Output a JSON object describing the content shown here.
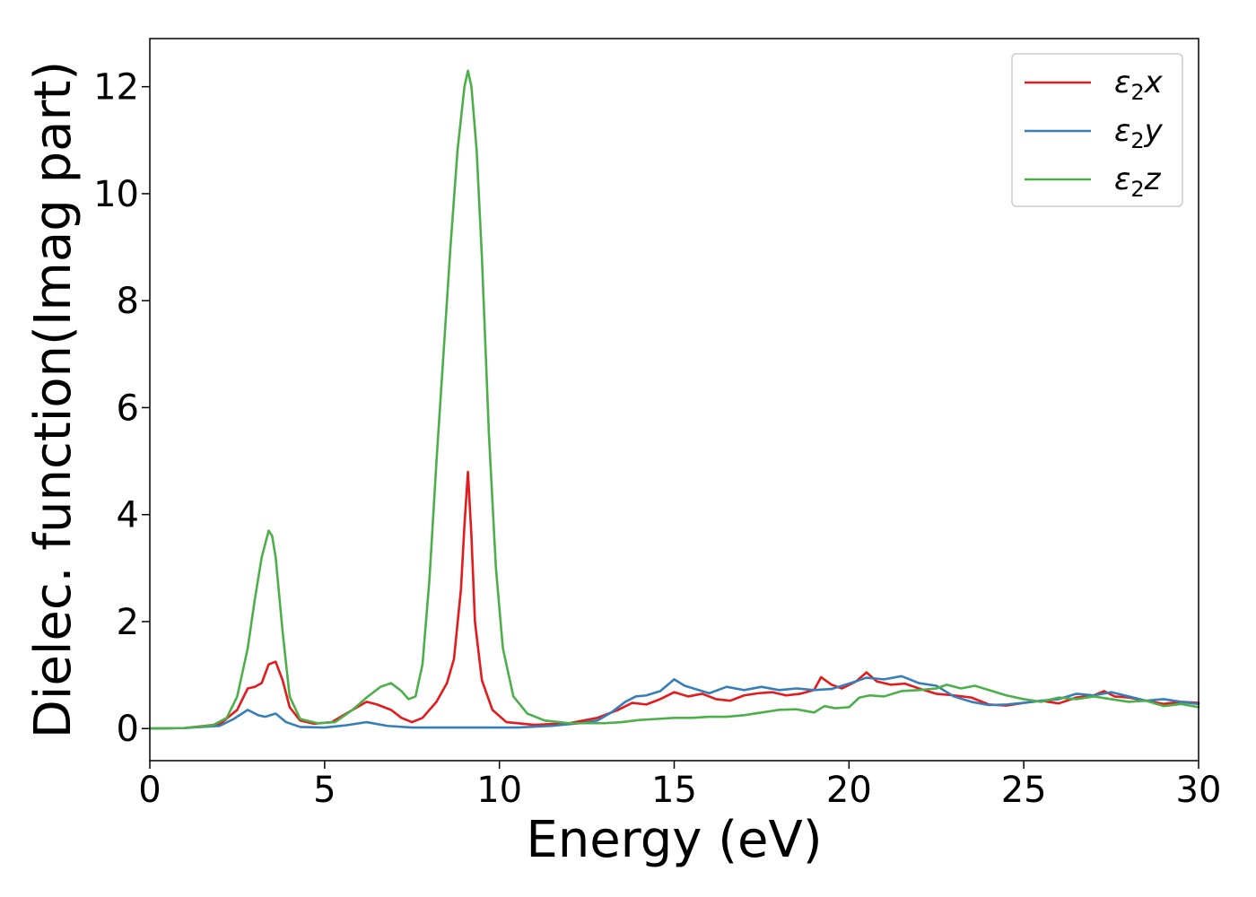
{
  "chart_data": {
    "type": "line",
    "xlabel": "Energy (eV)",
    "ylabel": "Dielec. function(Imag part)",
    "xlim": [
      0,
      30
    ],
    "ylim": [
      -0.6,
      12.9
    ],
    "xticks": [
      0,
      5,
      10,
      15,
      20,
      25,
      30
    ],
    "yticks": [
      0,
      2,
      4,
      6,
      8,
      10,
      12
    ],
    "grid": false,
    "legend_position": "top-right",
    "series": [
      {
        "name": "ε₂x",
        "legend_base": "ε",
        "legend_sub": "2",
        "legend_suffix": "x",
        "color": "#e41a1c",
        "x": [
          0,
          1,
          2,
          2.5,
          2.8,
          3.0,
          3.2,
          3.4,
          3.6,
          3.8,
          4.0,
          4.3,
          4.7,
          5.2,
          5.8,
          6.2,
          6.5,
          6.9,
          7.2,
          7.5,
          7.8,
          8.2,
          8.5,
          8.7,
          8.9,
          9.0,
          9.1,
          9.2,
          9.3,
          9.5,
          9.8,
          10.2,
          11,
          12,
          12.8,
          13.4,
          13.8,
          14.2,
          14.6,
          15.0,
          15.4,
          15.8,
          16.2,
          16.6,
          17.0,
          17.4,
          17.8,
          18.2,
          18.6,
          19.0,
          19.2,
          19.5,
          19.8,
          20.2,
          20.5,
          20.8,
          21.2,
          21.6,
          22.0,
          22.5,
          23.0,
          23.5,
          24.0,
          24.5,
          25.0,
          25.5,
          26.0,
          26.5,
          27.0,
          27.3,
          27.6,
          28.0,
          28.5,
          29.0,
          29.5,
          30
        ],
        "values": [
          0,
          0.01,
          0.08,
          0.35,
          0.75,
          0.78,
          0.85,
          1.2,
          1.25,
          0.9,
          0.4,
          0.15,
          0.09,
          0.12,
          0.35,
          0.5,
          0.45,
          0.35,
          0.2,
          0.12,
          0.2,
          0.5,
          0.85,
          1.3,
          2.6,
          3.8,
          4.8,
          3.6,
          2.0,
          0.9,
          0.35,
          0.12,
          0.07,
          0.1,
          0.2,
          0.35,
          0.48,
          0.45,
          0.55,
          0.68,
          0.6,
          0.65,
          0.55,
          0.52,
          0.62,
          0.66,
          0.68,
          0.62,
          0.65,
          0.72,
          0.96,
          0.82,
          0.75,
          0.88,
          1.05,
          0.88,
          0.82,
          0.84,
          0.75,
          0.65,
          0.62,
          0.58,
          0.45,
          0.43,
          0.48,
          0.52,
          0.47,
          0.58,
          0.62,
          0.7,
          0.6,
          0.58,
          0.52,
          0.46,
          0.5,
          0.48
        ]
      },
      {
        "name": "ε₂y",
        "legend_base": "ε",
        "legend_sub": "2",
        "legend_suffix": "y",
        "color": "#377eb8",
        "x": [
          0,
          1,
          2,
          2.4,
          2.8,
          3.1,
          3.3,
          3.6,
          3.9,
          4.3,
          5.0,
          5.6,
          6.2,
          6.8,
          7.5,
          8.5,
          9.5,
          10.5,
          11.5,
          12.3,
          12.8,
          13.2,
          13.6,
          13.9,
          14.2,
          14.6,
          15.0,
          15.3,
          15.7,
          16.0,
          16.5,
          17.0,
          17.5,
          18.0,
          18.5,
          19.0,
          19.5,
          20.0,
          20.5,
          21.0,
          21.5,
          22.0,
          22.5,
          23.0,
          23.5,
          24.0,
          24.5,
          25.0,
          25.5,
          26.0,
          26.5,
          27.0,
          27.5,
          28.0,
          28.5,
          29.0,
          29.5,
          30
        ],
        "values": [
          0,
          0.01,
          0.05,
          0.18,
          0.35,
          0.25,
          0.22,
          0.28,
          0.12,
          0.03,
          0.02,
          0.06,
          0.12,
          0.05,
          0.02,
          0.02,
          0.02,
          0.02,
          0.05,
          0.1,
          0.15,
          0.3,
          0.5,
          0.6,
          0.62,
          0.7,
          0.92,
          0.8,
          0.72,
          0.66,
          0.78,
          0.72,
          0.78,
          0.72,
          0.75,
          0.72,
          0.74,
          0.84,
          0.95,
          0.92,
          0.98,
          0.85,
          0.8,
          0.6,
          0.5,
          0.44,
          0.45,
          0.48,
          0.52,
          0.55,
          0.65,
          0.62,
          0.68,
          0.6,
          0.52,
          0.55,
          0.5,
          0.46
        ]
      },
      {
        "name": "ε₂z",
        "legend_base": "ε",
        "legend_sub": "2",
        "legend_suffix": "z",
        "color": "#4daf4a",
        "x": [
          0,
          1,
          1.8,
          2.2,
          2.5,
          2.8,
          3.0,
          3.2,
          3.4,
          3.5,
          3.6,
          3.8,
          4.0,
          4.3,
          4.8,
          5.3,
          5.8,
          6.2,
          6.6,
          6.9,
          7.2,
          7.4,
          7.6,
          7.8,
          8.0,
          8.2,
          8.4,
          8.6,
          8.8,
          9.0,
          9.1,
          9.2,
          9.35,
          9.5,
          9.7,
          9.9,
          10.1,
          10.4,
          10.8,
          11.3,
          12.0,
          13.0,
          13.5,
          14.0,
          14.5,
          15.0,
          15.5,
          16.0,
          16.5,
          17.0,
          17.5,
          18.0,
          18.5,
          19.0,
          19.3,
          19.6,
          20.0,
          20.3,
          20.6,
          21.0,
          21.5,
          22.0,
          22.5,
          22.8,
          23.2,
          23.6,
          24.0,
          24.5,
          25.0,
          25.5,
          26.0,
          26.5,
          27.0,
          27.5,
          28.0,
          28.5,
          29.0,
          29.5,
          30
        ],
        "values": [
          0,
          0.01,
          0.06,
          0.2,
          0.6,
          1.5,
          2.4,
          3.2,
          3.7,
          3.6,
          3.2,
          1.8,
          0.6,
          0.18,
          0.1,
          0.12,
          0.35,
          0.58,
          0.78,
          0.85,
          0.7,
          0.55,
          0.6,
          1.2,
          2.8,
          5.0,
          7.0,
          9.0,
          10.8,
          12.0,
          12.3,
          12.0,
          10.8,
          8.8,
          5.5,
          3.0,
          1.5,
          0.6,
          0.28,
          0.15,
          0.1,
          0.1,
          0.12,
          0.16,
          0.18,
          0.2,
          0.2,
          0.22,
          0.22,
          0.25,
          0.3,
          0.35,
          0.36,
          0.3,
          0.42,
          0.38,
          0.4,
          0.58,
          0.62,
          0.6,
          0.7,
          0.72,
          0.75,
          0.82,
          0.75,
          0.8,
          0.72,
          0.62,
          0.55,
          0.5,
          0.58,
          0.55,
          0.6,
          0.55,
          0.5,
          0.52,
          0.42,
          0.46,
          0.4
        ]
      }
    ]
  }
}
